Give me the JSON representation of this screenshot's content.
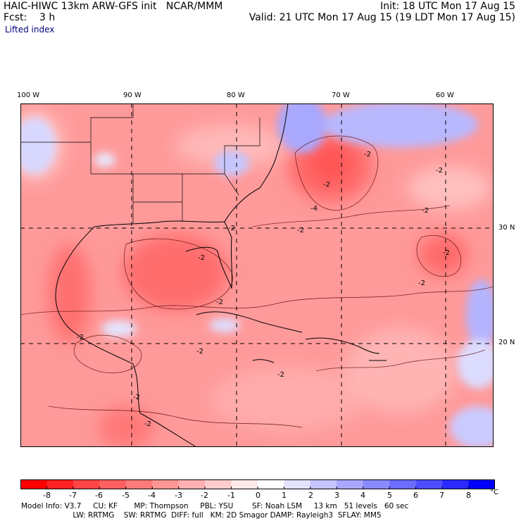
{
  "header": {
    "left_line1": "HAIC-HIWC 13km ARW-GFS init   NCAR/MMM",
    "left_line2": "Fcst:    3 h",
    "right_line1": "Init: 18 UTC Mon 17 Aug 15",
    "right_line2": "Valid: 21 UTC Mon 17 Aug 15 (19 LDT Mon 17 Aug 15)",
    "field_name": "Lifted index"
  },
  "axes": {
    "lon_labels": [
      "100 W",
      "90 W",
      "80 W",
      "70 W",
      "60 W"
    ],
    "lat_labels": [
      "30 N",
      "20 N"
    ]
  },
  "contour_labels": [
    "-2",
    "-2",
    "-2",
    "-4",
    "-2",
    "-2",
    "-2",
    "-2",
    "-2",
    "-2",
    "-2",
    "-2",
    "-2",
    "-2",
    "-2",
    "-2"
  ],
  "colorbar": {
    "unit": "°C",
    "labels": [
      "-8",
      "-7",
      "-6",
      "-5",
      "-4",
      "-3",
      "-2",
      "-1",
      "0",
      "1",
      "2",
      "3",
      "4",
      "5",
      "6",
      "7",
      "8"
    ],
    "colors": [
      "#ff0000",
      "#ff2222",
      "#ff4545",
      "#ff6060",
      "#ff7a7a",
      "#ff9696",
      "#ffb0b0",
      "#ffcccc",
      "#ffe8e8",
      "#ffffff",
      "#e2e2ff",
      "#c4c4ff",
      "#a8a8ff",
      "#8a8aff",
      "#6c6cff",
      "#4e4eff",
      "#2a2aff",
      "#0000ff"
    ]
  },
  "footer": {
    "line1": "Model Info: V3.7     CU: KF       MP: Thompson     PBL: YSU        SF: Noah LSM     13 km   51 levels   60 sec",
    "line2": "                      LW: RRTMG    SW: RRTMG  DIFF: full   KM: 2D Smagor DAMP: Rayleigh3  SFLAY: MM5"
  }
}
